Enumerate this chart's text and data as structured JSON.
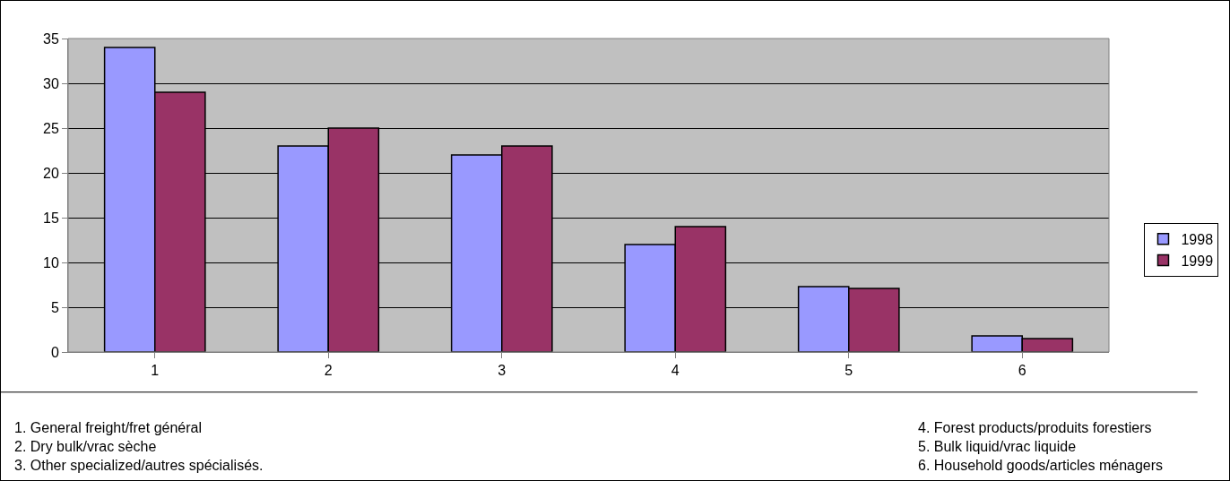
{
  "chart_data": {
    "type": "bar",
    "categories": [
      "1",
      "2",
      "3",
      "4",
      "5",
      "6"
    ],
    "series": [
      {
        "name": "1998",
        "color": "#9999ff",
        "values": [
          34,
          23,
          22,
          12,
          7.3,
          1.8
        ]
      },
      {
        "name": "1999",
        "color": "#993366",
        "values": [
          29,
          25,
          23,
          14,
          7.1,
          1.5
        ]
      }
    ],
    "ylim": [
      0,
      35
    ],
    "yticks": [
      0,
      5,
      10,
      15,
      20,
      25,
      30,
      35
    ],
    "grid": "y",
    "legend": "right",
    "annotations": [
      "1. General freight/fret général",
      "2. Dry bulk/vrac sèche",
      "3. Other specialized/autres spécialisés.",
      "4. Forest products/produits forestiers",
      "5. Bulk liquid/vrac liquide",
      "6. Household goods/articles ménagers"
    ]
  }
}
